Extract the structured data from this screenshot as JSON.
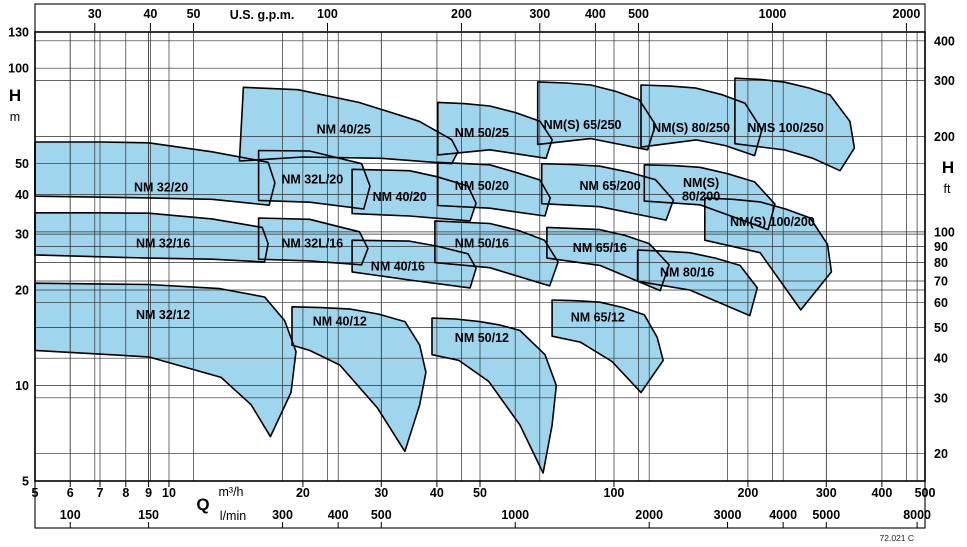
{
  "figure": {
    "code": "72.021 C",
    "bg_color": "#ffffff",
    "region_fill": "#a0d5ee",
    "region_stroke": "#000000",
    "grid_color": "#2f2f2f"
  },
  "chart_data": {
    "type": "area",
    "scale": "log-log",
    "x_range_m3h": [
      5,
      500
    ],
    "y_range_m": [
      5,
      130
    ],
    "axes": {
      "top": {
        "unit_label": "U.S. g.p.m.",
        "m3h_per_unit": 0.2271,
        "ticks": [
          30,
          40,
          50,
          100,
          200,
          300,
          400,
          500,
          1000,
          2000
        ]
      },
      "bottom_m3h": {
        "axis_letter": "Q",
        "unit_label": "m³/h",
        "ticks": [
          5,
          6,
          7,
          8,
          9,
          10,
          20,
          30,
          40,
          50,
          100,
          200,
          300,
          400,
          500
        ]
      },
      "bottom_lmin": {
        "unit_label": "l/min",
        "m3h_per_unit": 0.06,
        "ticks": [
          100,
          150,
          300,
          400,
          500,
          1000,
          2000,
          3000,
          4000,
          5000,
          8000
        ]
      },
      "left": {
        "axis_letter": "H",
        "unit_label": "m",
        "ticks": [
          130,
          100,
          50,
          40,
          30,
          20,
          10,
          5
        ]
      },
      "right": {
        "axis_letter": "H",
        "unit_label": "ft",
        "m_per_unit": 0.3048,
        "ticks": [
          400,
          300,
          200,
          100,
          90,
          80,
          70,
          60,
          50,
          40,
          30,
          20
        ]
      }
    },
    "regions": [
      {
        "name": "NM 32/20",
        "label_lines": [
          "NM 32/20"
        ],
        "label_pos": [
          9.6,
          42
        ],
        "points": [
          [
            5,
            58.5
          ],
          [
            7,
            58.5
          ],
          [
            9,
            58.2
          ],
          [
            12.5,
            54.5
          ],
          [
            16.7,
            50.5
          ],
          [
            17.3,
            43.5
          ],
          [
            16.8,
            37
          ],
          [
            12.5,
            38.6
          ],
          [
            9,
            39
          ],
          [
            5,
            39.5
          ]
        ]
      },
      {
        "name": "NM 32L/20",
        "label_lines": [
          "NM 32L/20"
        ],
        "label_pos": [
          21,
          44.5
        ],
        "points": [
          [
            15.9,
            55
          ],
          [
            20.7,
            54.8
          ],
          [
            27.1,
            50
          ],
          [
            28.3,
            42.5
          ],
          [
            27.4,
            36
          ],
          [
            20.7,
            37.8
          ],
          [
            15.9,
            38.3
          ]
        ]
      },
      {
        "name": "NM 32/16",
        "label_lines": [
          "NM 32/16"
        ],
        "label_pos": [
          9.7,
          28
        ],
        "points": [
          [
            5,
            35
          ],
          [
            7,
            35
          ],
          [
            9,
            34.9
          ],
          [
            12.5,
            33.5
          ],
          [
            16.2,
            31.5
          ],
          [
            16.7,
            28
          ],
          [
            16.4,
            24.5
          ],
          [
            12.5,
            25
          ],
          [
            9,
            25.2
          ],
          [
            5,
            25.8
          ]
        ]
      },
      {
        "name": "NM 32L/16",
        "label_lines": [
          "NM 32L/16"
        ],
        "label_pos": [
          21,
          28
        ],
        "points": [
          [
            15.9,
            33.7
          ],
          [
            20.7,
            33.4
          ],
          [
            26.8,
            30.5
          ],
          [
            28,
            27
          ],
          [
            27.1,
            24
          ],
          [
            20.7,
            24.7
          ],
          [
            15.9,
            25
          ]
        ]
      },
      {
        "name": "NM 32/12",
        "label_lines": [
          "NM 32/12"
        ],
        "label_pos": [
          9.7,
          16.7
        ],
        "points": [
          [
            5,
            21
          ],
          [
            9,
            20.8
          ],
          [
            13,
            20.2
          ],
          [
            16.4,
            19
          ],
          [
            18.2,
            16
          ],
          [
            19.3,
            12.8
          ],
          [
            18.8,
            9.5
          ],
          [
            16.9,
            6.9
          ],
          [
            15.3,
            8.7
          ],
          [
            13.1,
            10.6
          ],
          [
            9,
            12.3
          ],
          [
            5,
            12.9
          ]
        ]
      },
      {
        "name": "NM 40/25",
        "label_lines": [
          "NM 40/25"
        ],
        "label_pos": [
          24.7,
          64
        ],
        "points": [
          [
            14.7,
            87
          ],
          [
            19.5,
            85.5
          ],
          [
            26.7,
            78
          ],
          [
            36.5,
            68
          ],
          [
            43.2,
            59.5
          ],
          [
            44.6,
            54.5
          ],
          [
            43.2,
            50
          ],
          [
            30,
            52
          ],
          [
            20,
            52.5
          ],
          [
            14.4,
            51
          ]
        ]
      },
      {
        "name": "NM 40/20",
        "label_lines": [
          "NM 40/20"
        ],
        "label_pos": [
          33,
          39.3
        ],
        "points": [
          [
            25.8,
            48
          ],
          [
            34.7,
            47.5
          ],
          [
            40,
            45.5
          ],
          [
            47,
            42.5
          ],
          [
            49,
            37.5
          ],
          [
            47.5,
            33
          ],
          [
            34.7,
            34.2
          ],
          [
            25.8,
            34.8
          ]
        ]
      },
      {
        "name": "NM 40/16",
        "label_lines": [
          "NM 40/16"
        ],
        "label_pos": [
          32.7,
          23.7
        ],
        "points": [
          [
            25.8,
            28.7
          ],
          [
            34.7,
            28.5
          ],
          [
            40,
            27.5
          ],
          [
            47,
            26
          ],
          [
            49,
            23.4
          ],
          [
            47.5,
            20.3
          ],
          [
            34.7,
            21.5
          ],
          [
            25.8,
            22.8
          ]
        ]
      },
      {
        "name": "NM 40/12",
        "label_lines": [
          "NM 40/12"
        ],
        "label_pos": [
          24.2,
          15.9
        ],
        "points": [
          [
            18.9,
            17.7
          ],
          [
            22,
            17.6
          ],
          [
            25.6,
            17.4
          ],
          [
            29.5,
            16.8
          ],
          [
            33.9,
            15.9
          ],
          [
            36.6,
            13.4
          ],
          [
            37.8,
            11
          ],
          [
            36.6,
            8.7
          ],
          [
            33.9,
            6.2
          ],
          [
            29.4,
            8.5
          ],
          [
            24.2,
            11.6
          ],
          [
            20.7,
            12.9
          ],
          [
            18.9,
            13.4
          ]
        ]
      },
      {
        "name": "NM 50/25",
        "label_lines": [
          "NM 50/25"
        ],
        "label_pos": [
          50.5,
          62.5
        ],
        "points": [
          [
            40.2,
            78
          ],
          [
            46,
            77.3
          ],
          [
            52.6,
            76
          ],
          [
            60,
            72.5
          ],
          [
            68.2,
            68
          ],
          [
            72.6,
            59.5
          ],
          [
            70.4,
            52
          ],
          [
            52.6,
            55.3
          ],
          [
            40.2,
            53.3
          ]
        ]
      },
      {
        "name": "NM 50/20",
        "label_lines": [
          "NM 50/20"
        ],
        "label_pos": [
          50.5,
          42.5
        ],
        "points": [
          [
            40.2,
            50.5
          ],
          [
            52.6,
            49.6
          ],
          [
            60,
            47
          ],
          [
            68.2,
            44.4
          ],
          [
            71.9,
            39
          ],
          [
            70,
            34.2
          ],
          [
            52.6,
            36.2
          ],
          [
            40.2,
            36.9
          ]
        ]
      },
      {
        "name": "NM 50/16",
        "label_lines": [
          "NM 50/16"
        ],
        "label_pos": [
          50.5,
          28
        ],
        "points": [
          [
            39.6,
            33
          ],
          [
            52.6,
            32.4
          ],
          [
            61,
            30.8
          ],
          [
            69.8,
            28.7
          ],
          [
            74.9,
            24.5
          ],
          [
            71.7,
            20.6
          ],
          [
            52.6,
            23.5
          ],
          [
            39.6,
            24.4
          ]
        ]
      },
      {
        "name": "NM 50/12",
        "label_lines": [
          "NM 50/12"
        ],
        "label_pos": [
          50.5,
          14.1
        ],
        "points": [
          [
            39,
            16.3
          ],
          [
            44,
            16.2
          ],
          [
            49.9,
            15.9
          ],
          [
            55.5,
            15.5
          ],
          [
            61.5,
            14.9
          ],
          [
            70,
            12.5
          ],
          [
            74.2,
            10
          ],
          [
            72.6,
            7.5
          ],
          [
            69.3,
            5.3
          ],
          [
            61.5,
            7.5
          ],
          [
            52.3,
            10.3
          ],
          [
            44.8,
            12
          ],
          [
            39,
            12.5
          ]
        ]
      },
      {
        "name": "NM(S) 65/250",
        "label_lines": [
          "NM(S) 65/250"
        ],
        "label_pos": [
          85,
          66.3
        ],
        "points": [
          [
            67.4,
            90.5
          ],
          [
            78,
            89.8
          ],
          [
            88.7,
            88.5
          ],
          [
            101,
            84.5
          ],
          [
            114,
            79.5
          ],
          [
            124,
            66.3
          ],
          [
            119,
            55.3
          ],
          [
            88.7,
            60
          ],
          [
            67.4,
            57.5
          ]
        ]
      },
      {
        "name": "NM 65/200",
        "label_lines": [
          "NM 65/200"
        ],
        "label_pos": [
          98,
          42.5
        ],
        "points": [
          [
            68.8,
            50
          ],
          [
            80,
            49.7
          ],
          [
            93,
            49.1
          ],
          [
            108,
            47
          ],
          [
            124,
            44.5
          ],
          [
            136,
            38.4
          ],
          [
            131,
            33.2
          ],
          [
            93,
            36.6
          ],
          [
            68.8,
            37.4
          ]
        ]
      },
      {
        "name": "NM 65/16",
        "label_lines": [
          "NM 65/16"
        ],
        "label_pos": [
          93,
          27.1
        ],
        "points": [
          [
            70.7,
            31.5
          ],
          [
            93,
            31
          ],
          [
            106,
            29.7
          ],
          [
            120,
            28
          ],
          [
            133,
            24
          ],
          [
            127,
            19.9
          ],
          [
            93,
            23.9
          ],
          [
            70.7,
            25.2
          ]
        ]
      },
      {
        "name": "NM 65/12",
        "label_lines": [
          "NM 65/12"
        ],
        "label_pos": [
          92,
          16.4
        ],
        "points": [
          [
            72.6,
            18.6
          ],
          [
            82,
            18.5
          ],
          [
            93,
            18.3
          ],
          [
            105,
            17.6
          ],
          [
            117,
            16.7
          ],
          [
            125,
            14.2
          ],
          [
            129,
            12
          ],
          [
            115,
            9.5
          ],
          [
            99,
            11.9
          ],
          [
            84,
            13.7
          ],
          [
            72.6,
            14.3
          ]
        ]
      },
      {
        "name": "NM(S) 80/250",
        "label_lines": [
          "NM(S) 80/250"
        ],
        "label_pos": [
          149,
          64.8
        ],
        "points": [
          [
            115,
            88.5
          ],
          [
            134,
            87.8
          ],
          [
            153,
            86.5
          ],
          [
            175,
            82.5
          ],
          [
            197,
            77.5
          ],
          [
            215,
            64
          ],
          [
            207,
            53
          ],
          [
            178,
            57
          ],
          [
            153,
            59.4
          ],
          [
            115,
            56.4
          ]
        ]
      },
      {
        "name": "NM(S) 80/200",
        "label_lines": [
          "NM(S)",
          "80/200"
        ],
        "label_pos": [
          157,
          41.3
        ],
        "points": [
          [
            117,
            49.6
          ],
          [
            136,
            49.3
          ],
          [
            156,
            48.7
          ],
          [
            180,
            46.5
          ],
          [
            207,
            43.8
          ],
          [
            230,
            37.3
          ],
          [
            222,
            31
          ],
          [
            156,
            37.1
          ],
          [
            117,
            38.1
          ]
        ]
      },
      {
        "name": "NM 80/16",
        "label_lines": [
          "NM 80/16"
        ],
        "label_pos": [
          146,
          22.7
        ],
        "points": [
          [
            113,
            26.7
          ],
          [
            130,
            26.5
          ],
          [
            148,
            26.2
          ],
          [
            169,
            25.2
          ],
          [
            192,
            23.9
          ],
          [
            210,
            20.3
          ],
          [
            202,
            16.6
          ],
          [
            148,
            20
          ],
          [
            113,
            21.3
          ]
        ]
      },
      {
        "name": "NMS 100/250",
        "label_lines": [
          "NMS 100/250"
        ],
        "label_pos": [
          243,
          64.8
        ],
        "points": [
          [
            187,
            93
          ],
          [
            215,
            92
          ],
          [
            242,
            90.3
          ],
          [
            275,
            86.5
          ],
          [
            306,
            82.3
          ],
          [
            339,
            68
          ],
          [
            347,
            56
          ],
          [
            322,
            47.5
          ],
          [
            280,
            52
          ],
          [
            242,
            55.2
          ],
          [
            187,
            57.8
          ]
        ]
      },
      {
        "name": "NM(S) 100/200",
        "label_lines": [
          "NM(S) 100/200"
        ],
        "label_pos": [
          227,
          32.8
        ],
        "points": [
          [
            160,
            39
          ],
          [
            185,
            38.6
          ],
          [
            213,
            37.9
          ],
          [
            243,
            36
          ],
          [
            276,
            33.7
          ],
          [
            302,
            27.8
          ],
          [
            308,
            22.8
          ],
          [
            263,
            17.3
          ],
          [
            213,
            26.2
          ],
          [
            160,
            28.7
          ]
        ]
      }
    ]
  }
}
